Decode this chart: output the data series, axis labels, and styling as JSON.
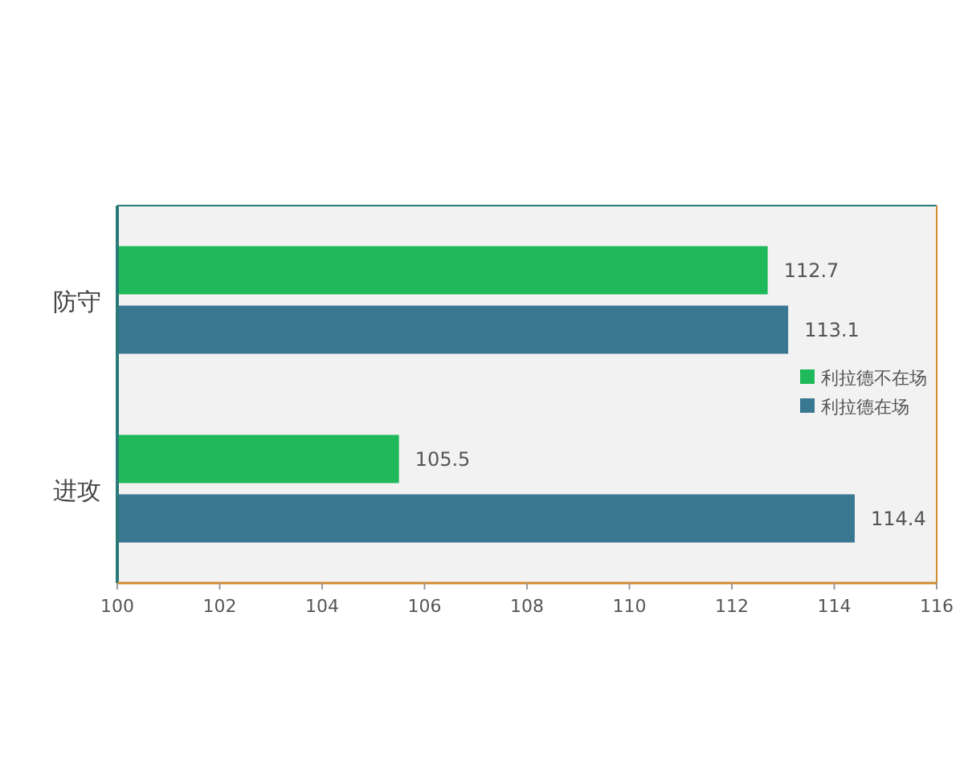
{
  "chart_data": {
    "type": "bar",
    "orientation": "horizontal",
    "categories": [
      "防守",
      "进攻"
    ],
    "series": [
      {
        "name": "利拉德不在场",
        "color": "#1fb85a",
        "values": [
          112.7,
          105.5
        ]
      },
      {
        "name": "利拉德在场",
        "color": "#3a7891",
        "values": [
          113.1,
          114.4
        ]
      }
    ],
    "xlim": [
      100,
      116
    ],
    "xticks": [
      100,
      102,
      104,
      106,
      108,
      110,
      112,
      114,
      116
    ],
    "data_labels": true,
    "legend": "right"
  }
}
